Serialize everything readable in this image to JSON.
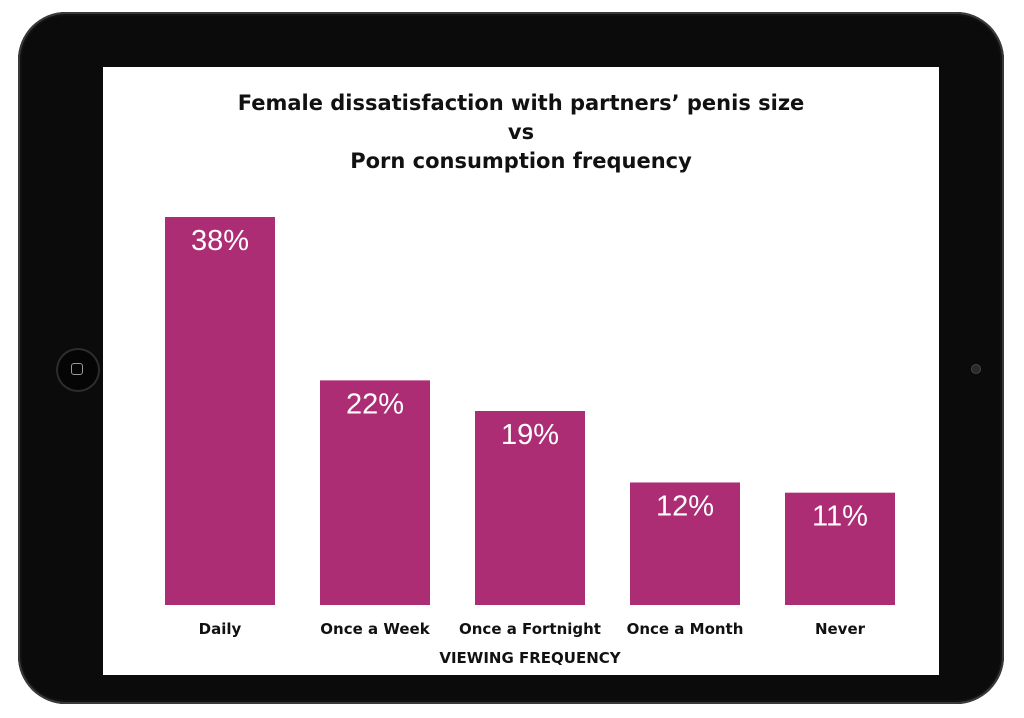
{
  "chart_data": {
    "type": "bar",
    "title_lines": [
      "Female dissatisfaction with partners’ penis size",
      "vs",
      "Porn consumption frequency"
    ],
    "xlabel": "VIEWING FREQUENCY",
    "ylabel": "",
    "categories": [
      "Daily",
      "Once a Week",
      "Once a Fortnight",
      "Once a Month",
      "Never"
    ],
    "values": [
      38,
      22,
      19,
      12,
      11
    ],
    "value_labels": [
      "38%",
      "22%",
      "19%",
      "12%",
      "11%"
    ],
    "ylim": [
      0,
      38
    ],
    "grid": false,
    "legend": "none",
    "bar_color": "#ad2d74"
  }
}
